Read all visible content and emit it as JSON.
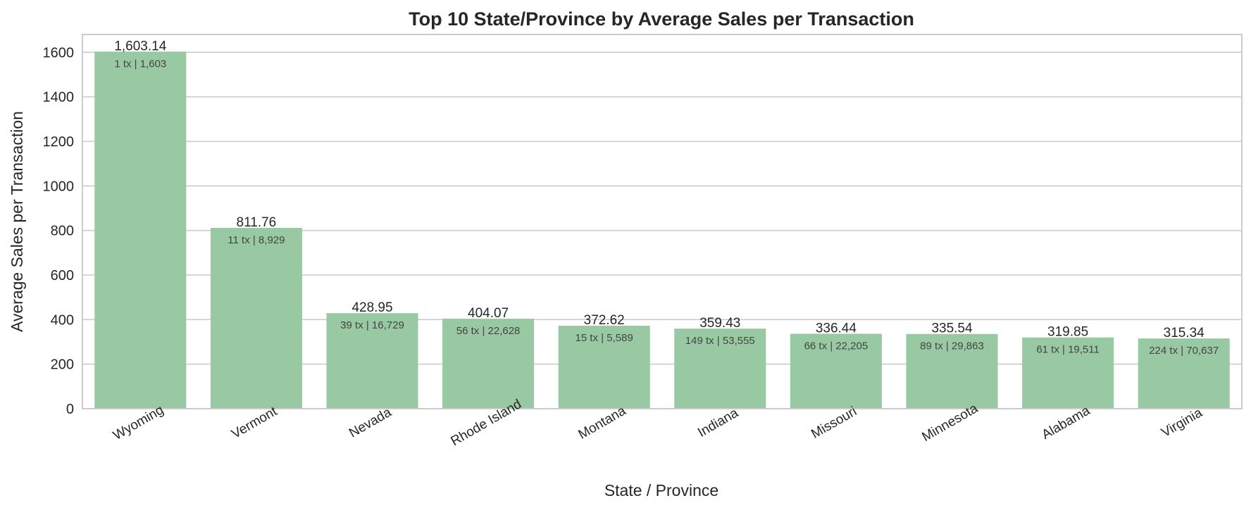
{
  "chart_data": {
    "type": "bar",
    "title": "Top 10 State/Province by Average Sales per Transaction",
    "xlabel": "State / Province",
    "ylabel": "Average Sales per Transaction",
    "ylim": [
      0,
      1680
    ],
    "yticks": [
      0,
      200,
      400,
      600,
      800,
      1000,
      1200,
      1400,
      1600
    ],
    "grid": true,
    "bar_color": "#98c9a3",
    "categories": [
      "Wyoming",
      "Vermont",
      "Nevada",
      "Rhode Island",
      "Montana",
      "Indiana",
      "Missouri",
      "Minnesota",
      "Alabama",
      "Virginia"
    ],
    "values": [
      1603.14,
      811.76,
      428.95,
      404.07,
      372.62,
      359.43,
      336.44,
      335.54,
      319.85,
      315.34
    ],
    "value_labels": [
      "1,603.14",
      "811.76",
      "428.95",
      "404.07",
      "372.62",
      "359.43",
      "336.44",
      "335.54",
      "319.85",
      "315.34"
    ],
    "sub_labels": [
      "1 tx | 1,603",
      "11 tx | 8,929",
      "39 tx | 16,729",
      "56 tx | 22,628",
      "15 tx | 5,589",
      "149 tx | 53,555",
      "66 tx | 22,205",
      "89 tx | 29,863",
      "61 tx | 19,511",
      "224 tx | 70,637"
    ]
  }
}
